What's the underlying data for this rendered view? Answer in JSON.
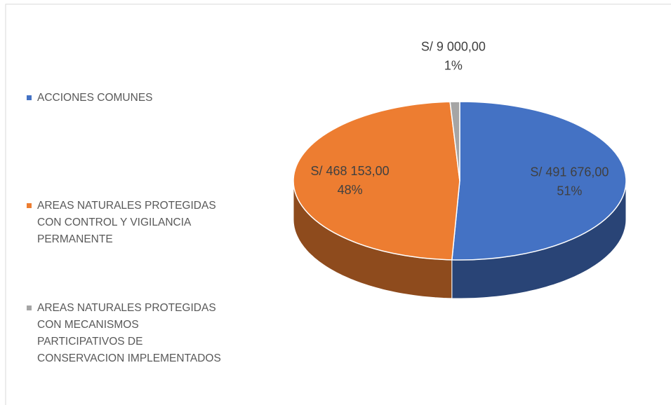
{
  "chart_data": {
    "type": "pie3d",
    "categories": [
      "ACCIONES COMUNES",
      "AREAS NATURALES PROTEGIDAS CON CONTROL Y VIGILANCIA PERMANENTE",
      "AREAS NATURALES PROTEGIDAS CON MECANISMOS PARTICIPATIVOS DE CONSERVACION IMPLEMENTADOS"
    ],
    "values": [
      491676,
      468153,
      9000
    ],
    "value_labels": [
      "S/ 491 676,00",
      "S/ 468 153,00",
      "S/ 9 000,00"
    ],
    "percent_labels": [
      "51%",
      "48%",
      "1%"
    ],
    "colors": [
      "#4472c4",
      "#ed7d31",
      "#a5a5a5"
    ],
    "legend": "left"
  }
}
